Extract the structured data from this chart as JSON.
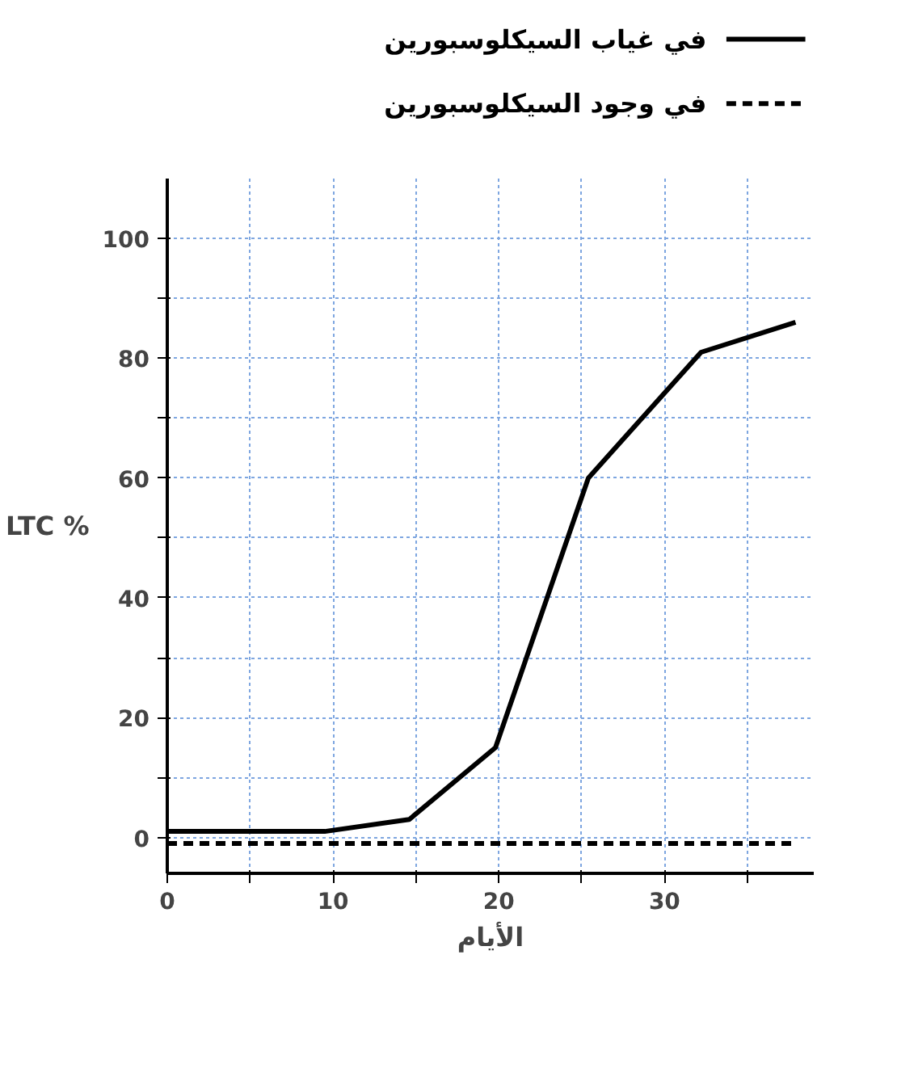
{
  "chart_data": {
    "type": "line",
    "xlabel": "الأيام",
    "ylabel": "LTC %",
    "x": [
      0,
      9.5,
      14.6,
      19.8,
      25.4,
      32.2,
      37.9
    ],
    "series": [
      {
        "name": "في غياب السيكلوسبورين",
        "color": "#000000",
        "values": [
          1,
          1,
          3,
          15,
          60,
          81,
          86
        ],
        "line_style": "solid"
      },
      {
        "name": "في وجود السيكلوسبورين",
        "color": "#000000",
        "x": [
          0,
          37.9
        ],
        "values": [
          -1,
          -1
        ],
        "line_style": "dashed"
      }
    ],
    "xlim": [
      0,
      39
    ],
    "ylim": [
      -6,
      110
    ],
    "xticks": [
      0,
      {
        "value": 5,
        "label": null
      },
      10,
      {
        "value": 15,
        "label": null
      },
      20,
      {
        "value": 25,
        "label": null
      },
      30,
      {
        "value": 35,
        "label": null
      }
    ],
    "yticks": [
      0,
      {
        "value": 10,
        "label": null
      },
      20,
      {
        "value": 30,
        "label": null
      },
      40,
      {
        "value": 50,
        "label": null
      },
      60,
      {
        "value": 70,
        "label": null
      },
      80,
      {
        "value": 90,
        "label": null
      },
      100
    ],
    "grid": true,
    "legend": "top right",
    "marker": "none"
  }
}
